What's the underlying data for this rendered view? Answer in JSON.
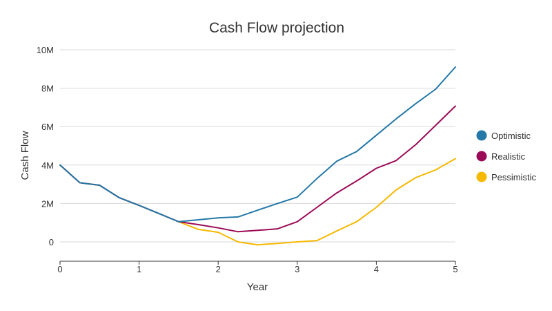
{
  "chart_data": {
    "type": "line",
    "title": "Cash Flow projection",
    "xlabel": "Year",
    "ylabel": "Cash Flow",
    "xlim": [
      0,
      5
    ],
    "ylim": [
      -1000000,
      10000000
    ],
    "x_ticks": [
      {
        "value": 0,
        "label": "0"
      },
      {
        "value": 1,
        "label": "1"
      },
      {
        "value": 2,
        "label": "2"
      },
      {
        "value": 3,
        "label": "3"
      },
      {
        "value": 4,
        "label": "4"
      },
      {
        "value": 5,
        "label": "5"
      }
    ],
    "y_ticks": [
      {
        "value": 0,
        "label": "0"
      },
      {
        "value": 2000000,
        "label": "2M"
      },
      {
        "value": 4000000,
        "label": "4M"
      },
      {
        "value": 6000000,
        "label": "6M"
      },
      {
        "value": 8000000,
        "label": "8M"
      },
      {
        "value": 10000000,
        "label": "10M"
      }
    ],
    "grid": true,
    "legend_position": "right",
    "x": [
      0,
      0.25,
      0.5,
      0.75,
      1,
      1.25,
      1.5,
      1.75,
      2,
      2.25,
      2.5,
      2.75,
      3,
      3.25,
      3.5,
      3.75,
      4,
      4.25,
      4.5,
      4.75,
      5
    ],
    "series": [
      {
        "name": "Optimistic",
        "color": "#2378a8",
        "values": [
          4000000,
          3080000,
          2950000,
          2300000,
          1900000,
          1480000,
          1050000,
          1150000,
          1250000,
          1300000,
          1650000,
          2000000,
          2330000,
          3300000,
          4200000,
          4700000,
          5550000,
          6400000,
          7200000,
          7950000,
          9100000
        ]
      },
      {
        "name": "Realistic",
        "color": "#9b0a56",
        "values": [
          4000000,
          3080000,
          2950000,
          2300000,
          1900000,
          1480000,
          1050000,
          900000,
          730000,
          530000,
          600000,
          680000,
          1050000,
          1800000,
          2550000,
          3170000,
          3830000,
          4230000,
          5070000,
          6070000,
          7070000
        ]
      },
      {
        "name": "Pessimistic",
        "color": "#f7b800",
        "values": [
          4000000,
          3080000,
          2950000,
          2300000,
          1900000,
          1480000,
          1050000,
          650000,
          500000,
          0,
          -150000,
          -80000,
          0,
          70000,
          570000,
          1050000,
          1800000,
          2700000,
          3350000,
          3750000,
          4330000
        ]
      }
    ]
  }
}
